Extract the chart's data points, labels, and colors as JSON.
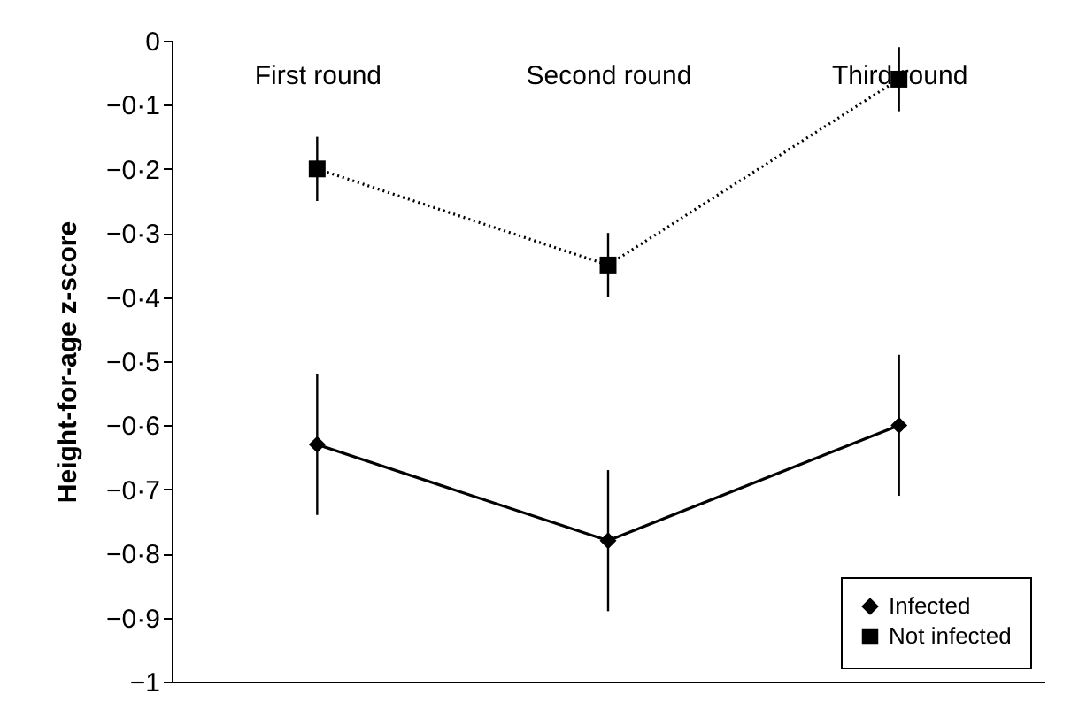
{
  "chart_data": {
    "type": "line",
    "ylabel": "Height-for-age z-score",
    "categories": [
      "First round",
      "Second round",
      "Third round"
    ],
    "series": [
      {
        "name": "Infected",
        "color": "#000000",
        "marker": "diamond",
        "line_style": "solid",
        "values": [
          -0.63,
          -0.78,
          -0.6
        ],
        "errors": [
          0.11,
          0.11,
          0.11
        ]
      },
      {
        "name": "Not infected",
        "color": "#000000",
        "marker": "square",
        "line_style": "dotted",
        "values": [
          -0.2,
          -0.35,
          -0.06
        ],
        "errors": [
          0.05,
          0.05,
          0.05
        ]
      }
    ],
    "ylim": [
      -1,
      0
    ],
    "yticks": [
      {
        "value": -1,
        "label": "−1"
      },
      {
        "value": -0.9,
        "label": "−0·9"
      },
      {
        "value": -0.8,
        "label": "−0·8"
      },
      {
        "value": -0.7,
        "label": "−0·7"
      },
      {
        "value": -0.6,
        "label": "−0·6"
      },
      {
        "value": -0.5,
        "label": "−0·5"
      },
      {
        "value": -0.4,
        "label": "−0·4"
      },
      {
        "value": -0.3,
        "label": "−0·3"
      },
      {
        "value": -0.2,
        "label": "−0·2"
      },
      {
        "value": -0.1,
        "label": "−0·1"
      },
      {
        "value": 0,
        "label": "0"
      }
    ],
    "grid": false,
    "legend": "bottom right"
  }
}
